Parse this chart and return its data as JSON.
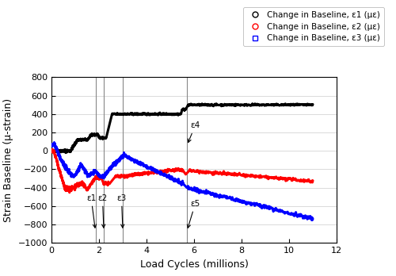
{
  "title": "",
  "xlabel": "Load Cycles (millions)",
  "ylabel": "Strain Baseline (μ-strain)",
  "xlim": [
    0,
    12
  ],
  "ylim": [
    -1000,
    800
  ],
  "xticks": [
    0,
    2,
    4,
    6,
    8,
    10,
    12
  ],
  "yticks": [
    -1000,
    -800,
    -600,
    -400,
    -200,
    0,
    200,
    400,
    600,
    800
  ],
  "legend_labels": [
    "Change in Baseline, ε1 (με)",
    "Change in Baseline, ε2 (με)",
    "Change in Baseline, ε3 (με)"
  ],
  "vline_e1": 1.85,
  "vline_e2": 2.2,
  "vline_e3": 3.0,
  "vline_e4e5": 5.7,
  "ann_e1_text": "ε1",
  "ann_e2_text": "ε2",
  "ann_e3_text": "ε3",
  "ann_e4_text": "ε4",
  "ann_e5_text": "ε5",
  "background_color": "#ffffff"
}
